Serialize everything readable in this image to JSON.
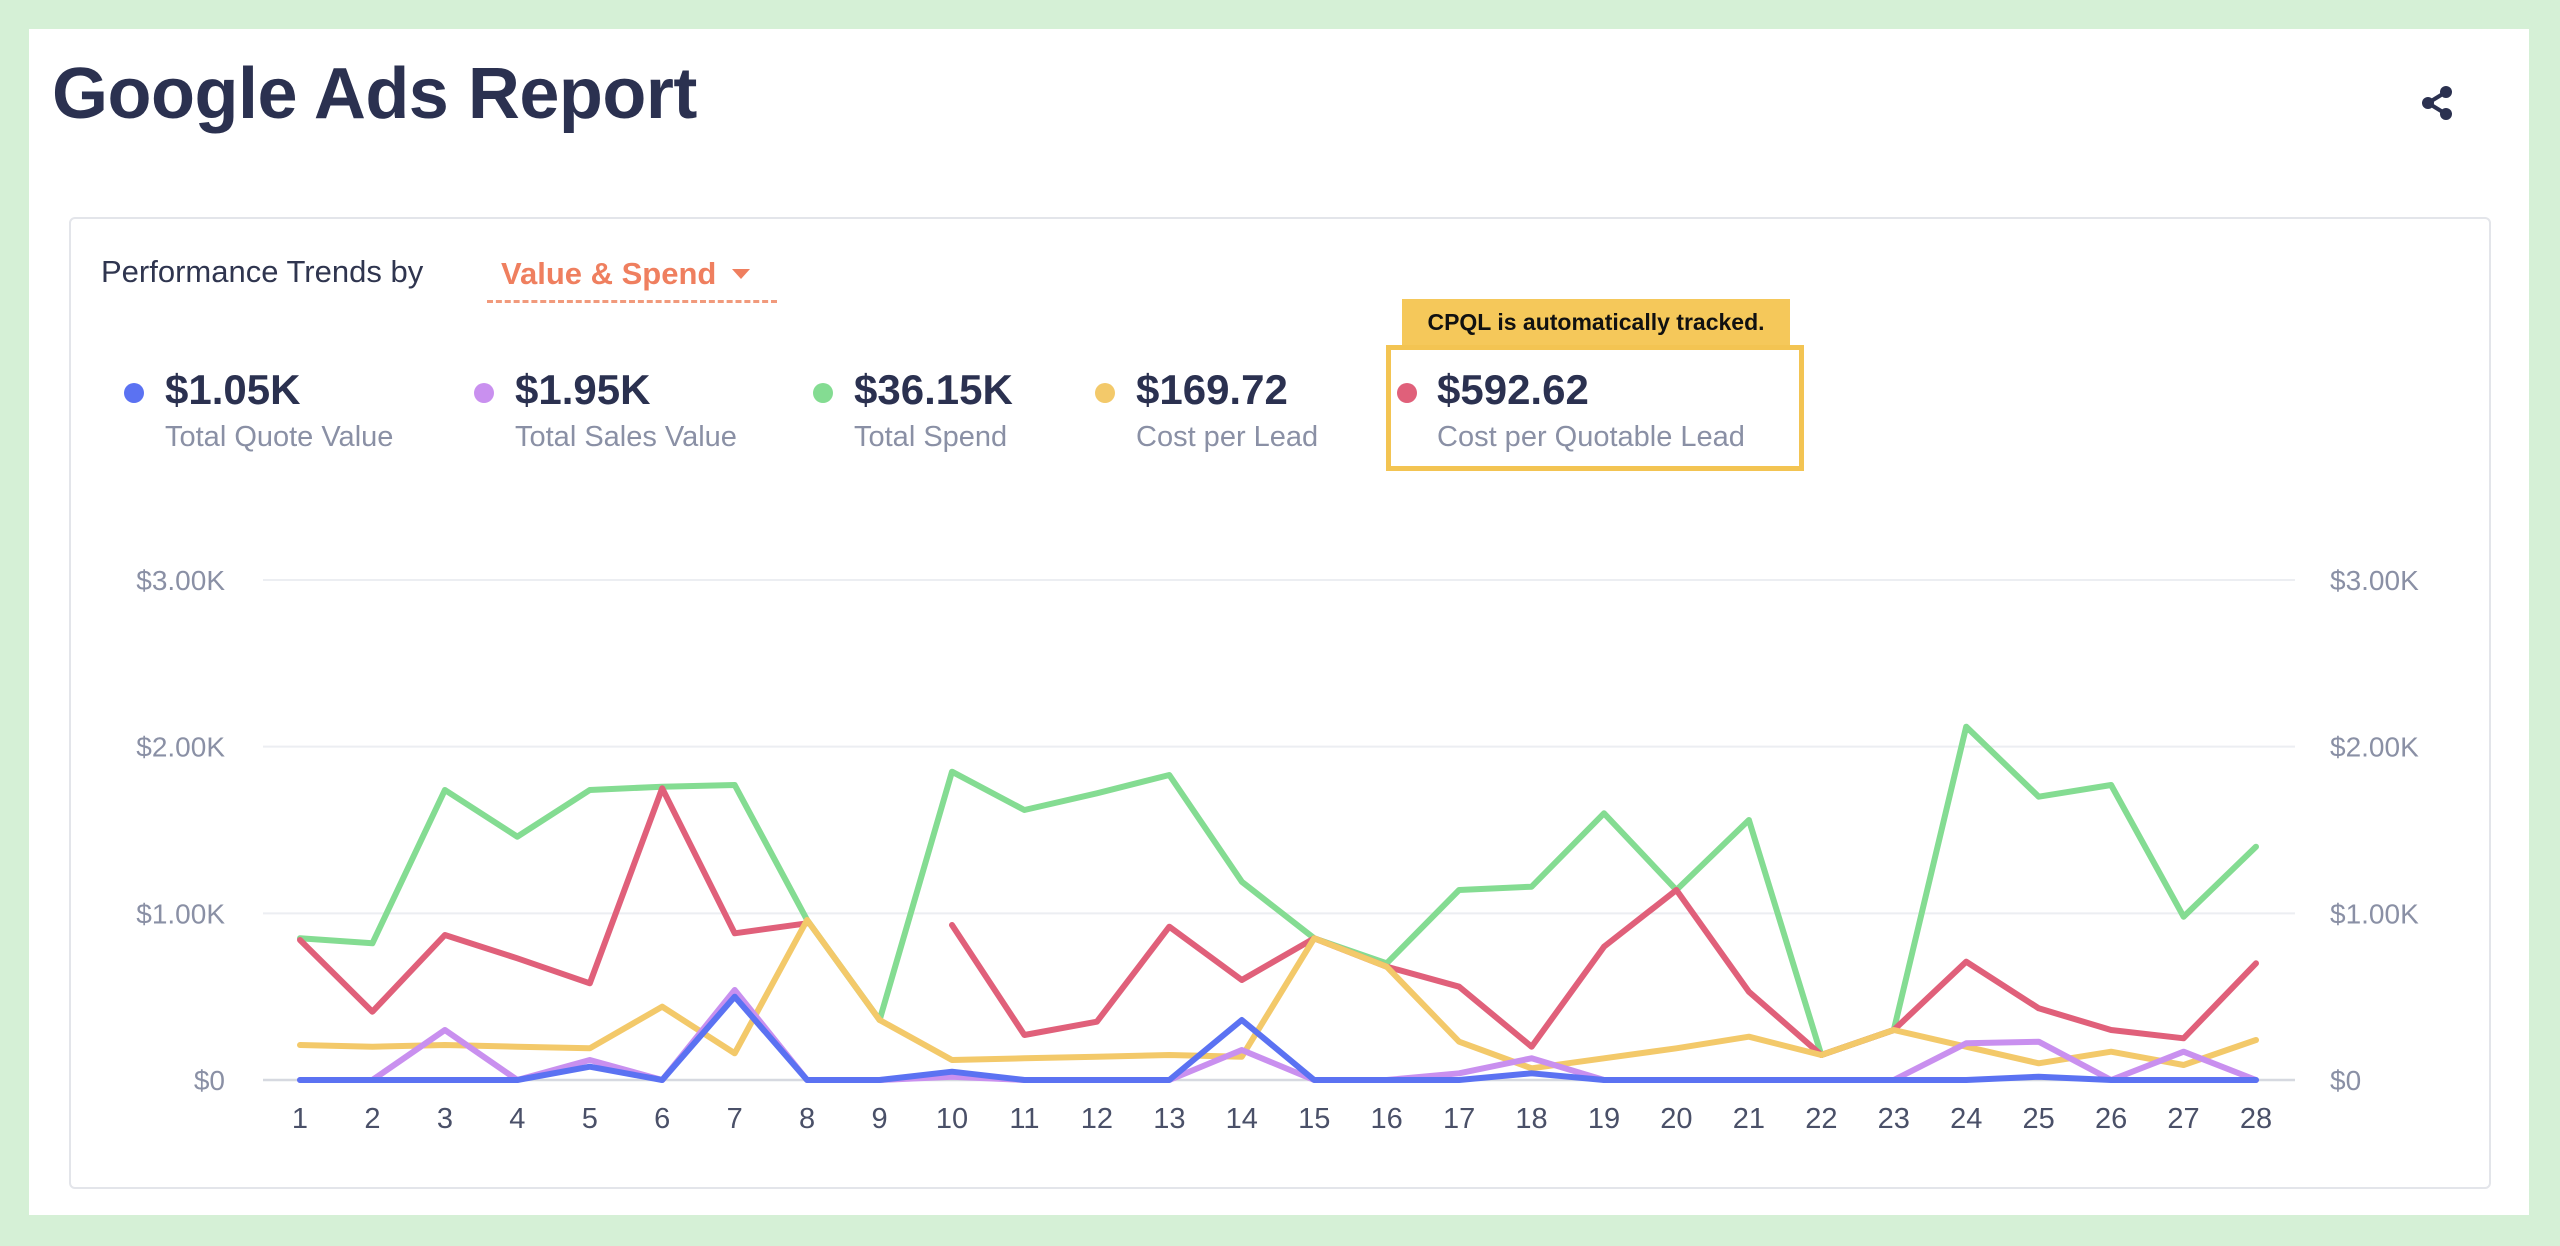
{
  "page": {
    "title": "Google Ads Report",
    "share_icon": "share-icon"
  },
  "filter": {
    "label": "Performance Trends by",
    "selected": "Value & Spend"
  },
  "kpis": [
    {
      "value": "$1.05K",
      "label": "Total Quote Value",
      "color": "#5b72f2"
    },
    {
      "value": "$1.95K",
      "label": "Total Sales Value",
      "color": "#c990ef"
    },
    {
      "value": "$36.15K",
      "label": "Total Spend",
      "color": "#84dc92"
    },
    {
      "value": "$169.72",
      "label": "Cost per Lead",
      "color": "#f3c96a"
    },
    {
      "value": "$592.62",
      "label": "Cost per Quotable Lead",
      "color": "#e0607a"
    }
  ],
  "callout": {
    "text": "CPQL is automatically tracked.",
    "color": "#f3c452"
  },
  "chart_data": {
    "type": "line",
    "x": [
      1,
      2,
      3,
      4,
      5,
      6,
      7,
      8,
      9,
      10,
      11,
      12,
      13,
      14,
      15,
      16,
      17,
      18,
      19,
      20,
      21,
      22,
      23,
      24,
      25,
      26,
      27,
      28
    ],
    "ylim": [
      0,
      3000
    ],
    "y_ticks": [
      "$0",
      "$1.00K",
      "$2.00K",
      "$3.00K"
    ],
    "y_tick_values": [
      0,
      1000,
      2000,
      3000
    ],
    "grid": true,
    "y_axis_both_sides": true,
    "series": [
      {
        "name": "Total Spend",
        "color": "#84dc92",
        "values": [
          850,
          820,
          1740,
          1460,
          1740,
          1760,
          1770,
          960,
          360,
          1850,
          1620,
          1720,
          1830,
          1190,
          850,
          700,
          1140,
          1160,
          1600,
          1140,
          1560,
          150,
          300,
          2120,
          1700,
          1770,
          980,
          1400
        ]
      },
      {
        "name": "Cost per Quotable Lead",
        "color": "#e0607a",
        "values": [
          840,
          410,
          870,
          730,
          580,
          1750,
          880,
          940,
          null,
          930,
          270,
          350,
          920,
          600,
          850,
          680,
          560,
          200,
          800,
          1140,
          530,
          150,
          300,
          710,
          430,
          300,
          250,
          700
        ]
      },
      {
        "name": "Cost per Lead",
        "color": "#f3c96a",
        "values": [
          210,
          200,
          210,
          200,
          190,
          440,
          160,
          960,
          360,
          120,
          130,
          140,
          150,
          140,
          850,
          680,
          230,
          70,
          130,
          190,
          260,
          150,
          300,
          200,
          100,
          170,
          90,
          240
        ]
      },
      {
        "name": "Total Sales Value",
        "color": "#c990ef",
        "values": [
          0,
          0,
          300,
          0,
          120,
          0,
          540,
          0,
          0,
          20,
          0,
          0,
          0,
          180,
          0,
          0,
          40,
          130,
          0,
          0,
          0,
          0,
          0,
          220,
          230,
          0,
          170,
          0
        ]
      },
      {
        "name": "Total Quote Value",
        "color": "#5b72f2",
        "values": [
          0,
          0,
          0,
          0,
          80,
          0,
          500,
          0,
          0,
          50,
          0,
          0,
          0,
          360,
          0,
          0,
          0,
          40,
          0,
          0,
          0,
          0,
          0,
          0,
          20,
          0,
          0,
          0
        ]
      }
    ]
  }
}
